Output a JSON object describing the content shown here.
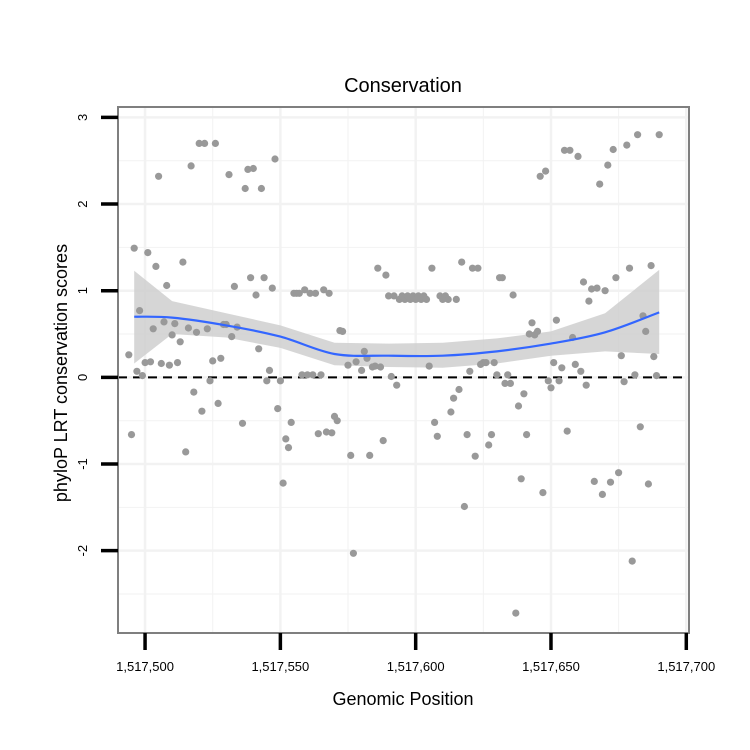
{
  "chart_data": {
    "type": "scatter",
    "title": "Conservation",
    "xlabel": "Genomic Position",
    "ylabel": "phyloP LRT conservation scores",
    "xlim": [
      1517490,
      1517701
    ],
    "ylim": [
      -2.95,
      3.12
    ],
    "x_ticks": [
      1517500,
      1517550,
      1517600,
      1517650,
      1517700
    ],
    "x_tick_labels": [
      "1,517,500",
      "1,517,550",
      "1,517,600",
      "1,517,650",
      "1,517,700"
    ],
    "y_ticks": [
      -2,
      -1,
      0,
      1,
      2,
      3
    ],
    "y_tick_labels": [
      "-2",
      "-1",
      "0",
      "1",
      "2",
      "3"
    ],
    "reference_line": 0,
    "grid": true,
    "colors": {
      "points": "#999999",
      "smooth_line": "#3366FF",
      "ribbon": "#CCCCCC",
      "panel_border": "#7F7F7F",
      "grid": "#F2F2F2",
      "axis_ticks": "#000000"
    },
    "points": [
      {
        "x": 1517494,
        "y": 0.26
      },
      {
        "x": 1517495,
        "y": -0.66
      },
      {
        "x": 1517496,
        "y": 1.49
      },
      {
        "x": 1517497,
        "y": 0.07
      },
      {
        "x": 1517498,
        "y": 0.77
      },
      {
        "x": 1517499,
        "y": 0.02
      },
      {
        "x": 1517500,
        "y": 0.17
      },
      {
        "x": 1517501,
        "y": 1.44
      },
      {
        "x": 1517502,
        "y": 0.18
      },
      {
        "x": 1517503,
        "y": 0.56
      },
      {
        "x": 1517504,
        "y": 1.28
      },
      {
        "x": 1517505,
        "y": 2.32
      },
      {
        "x": 1517506,
        "y": 0.16
      },
      {
        "x": 1517507,
        "y": 0.64
      },
      {
        "x": 1517508,
        "y": 1.06
      },
      {
        "x": 1517509,
        "y": 0.14
      },
      {
        "x": 1517510,
        "y": 0.49
      },
      {
        "x": 1517511,
        "y": 0.62
      },
      {
        "x": 1517512,
        "y": 0.17
      },
      {
        "x": 1517513,
        "y": 0.41
      },
      {
        "x": 1517514,
        "y": 1.33
      },
      {
        "x": 1517515,
        "y": -0.86
      },
      {
        "x": 1517516,
        "y": 0.57
      },
      {
        "x": 1517517,
        "y": 2.44
      },
      {
        "x": 1517518,
        "y": -0.17
      },
      {
        "x": 1517519,
        "y": 0.52
      },
      {
        "x": 1517520,
        "y": 2.7
      },
      {
        "x": 1517521,
        "y": -0.39
      },
      {
        "x": 1517522,
        "y": 2.7
      },
      {
        "x": 1517523,
        "y": 0.56
      },
      {
        "x": 1517524,
        "y": -0.04
      },
      {
        "x": 1517525,
        "y": 0.19
      },
      {
        "x": 1517526,
        "y": 2.7
      },
      {
        "x": 1517527,
        "y": -0.3
      },
      {
        "x": 1517528,
        "y": 0.22
      },
      {
        "x": 1517529,
        "y": 0.61
      },
      {
        "x": 1517530,
        "y": 0.61
      },
      {
        "x": 1517531,
        "y": 2.34
      },
      {
        "x": 1517532,
        "y": 0.47
      },
      {
        "x": 1517533,
        "y": 1.05
      },
      {
        "x": 1517534,
        "y": 0.58
      },
      {
        "x": 1517536,
        "y": -0.53
      },
      {
        "x": 1517537,
        "y": 2.18
      },
      {
        "x": 1517538,
        "y": 2.4
      },
      {
        "x": 1517539,
        "y": 1.15
      },
      {
        "x": 1517540,
        "y": 2.41
      },
      {
        "x": 1517541,
        "y": 0.95
      },
      {
        "x": 1517542,
        "y": 0.33
      },
      {
        "x": 1517543,
        "y": 2.18
      },
      {
        "x": 1517544,
        "y": 1.15
      },
      {
        "x": 1517545,
        "y": -0.04
      },
      {
        "x": 1517546,
        "y": 0.08
      },
      {
        "x": 1517547,
        "y": 1.03
      },
      {
        "x": 1517548,
        "y": 2.52
      },
      {
        "x": 1517549,
        "y": -0.36
      },
      {
        "x": 1517550,
        "y": -0.04
      },
      {
        "x": 1517551,
        "y": -1.22
      },
      {
        "x": 1517552,
        "y": -0.71
      },
      {
        "x": 1517553,
        "y": -0.81
      },
      {
        "x": 1517554,
        "y": -0.52
      },
      {
        "x": 1517555,
        "y": 0.97
      },
      {
        "x": 1517556,
        "y": 0.97
      },
      {
        "x": 1517557,
        "y": 0.97
      },
      {
        "x": 1517558,
        "y": 0.03
      },
      {
        "x": 1517559,
        "y": 1.01
      },
      {
        "x": 1517560,
        "y": 0.03
      },
      {
        "x": 1517561,
        "y": 0.97
      },
      {
        "x": 1517562,
        "y": 0.03
      },
      {
        "x": 1517563,
        "y": 0.97
      },
      {
        "x": 1517564,
        "y": -0.65
      },
      {
        "x": 1517565,
        "y": 0.03
      },
      {
        "x": 1517566,
        "y": 1.01
      },
      {
        "x": 1517567,
        "y": -0.63
      },
      {
        "x": 1517568,
        "y": 0.97
      },
      {
        "x": 1517569,
        "y": -0.64
      },
      {
        "x": 1517570,
        "y": -0.45
      },
      {
        "x": 1517571,
        "y": -0.5
      },
      {
        "x": 1517572,
        "y": 0.54
      },
      {
        "x": 1517573,
        "y": 0.53
      },
      {
        "x": 1517575,
        "y": 0.14
      },
      {
        "x": 1517576,
        "y": -0.9
      },
      {
        "x": 1517577,
        "y": -2.03
      },
      {
        "x": 1517578,
        "y": 0.18
      },
      {
        "x": 1517580,
        "y": 0.08
      },
      {
        "x": 1517581,
        "y": 0.3
      },
      {
        "x": 1517582,
        "y": 0.22
      },
      {
        "x": 1517583,
        "y": -0.9
      },
      {
        "x": 1517584,
        "y": 0.12
      },
      {
        "x": 1517585,
        "y": 0.13
      },
      {
        "x": 1517586,
        "y": 1.26
      },
      {
        "x": 1517587,
        "y": 0.12
      },
      {
        "x": 1517588,
        "y": -0.73
      },
      {
        "x": 1517589,
        "y": 1.18
      },
      {
        "x": 1517590,
        "y": 0.94
      },
      {
        "x": 1517591,
        "y": 0.01
      },
      {
        "x": 1517592,
        "y": 0.94
      },
      {
        "x": 1517593,
        "y": -0.09
      },
      {
        "x": 1517594,
        "y": 0.9
      },
      {
        "x": 1517595,
        "y": 0.94
      },
      {
        "x": 1517596,
        "y": 0.9
      },
      {
        "x": 1517597,
        "y": 0.94
      },
      {
        "x": 1517598,
        "y": 0.9
      },
      {
        "x": 1517599,
        "y": 0.94
      },
      {
        "x": 1517600,
        "y": 0.9
      },
      {
        "x": 1517601,
        "y": 0.94
      },
      {
        "x": 1517602,
        "y": 0.9
      },
      {
        "x": 1517603,
        "y": 0.94
      },
      {
        "x": 1517604,
        "y": 0.9
      },
      {
        "x": 1517605,
        "y": 0.13
      },
      {
        "x": 1517606,
        "y": 1.26
      },
      {
        "x": 1517607,
        "y": -0.52
      },
      {
        "x": 1517608,
        "y": -0.68
      },
      {
        "x": 1517609,
        "y": 0.94
      },
      {
        "x": 1517610,
        "y": 0.9
      },
      {
        "x": 1517611,
        "y": 0.94
      },
      {
        "x": 1517612,
        "y": 0.9
      },
      {
        "x": 1517613,
        "y": -0.4
      },
      {
        "x": 1517614,
        "y": -0.24
      },
      {
        "x": 1517615,
        "y": 0.9
      },
      {
        "x": 1517616,
        "y": -0.14
      },
      {
        "x": 1517617,
        "y": 1.33
      },
      {
        "x": 1517618,
        "y": -1.49
      },
      {
        "x": 1517619,
        "y": -0.66
      },
      {
        "x": 1517620,
        "y": 0.07
      },
      {
        "x": 1517621,
        "y": 1.26
      },
      {
        "x": 1517622,
        "y": -0.91
      },
      {
        "x": 1517623,
        "y": 1.26
      },
      {
        "x": 1517624,
        "y": 0.15
      },
      {
        "x": 1517625,
        "y": 0.17
      },
      {
        "x": 1517626,
        "y": 0.17
      },
      {
        "x": 1517627,
        "y": -0.78
      },
      {
        "x": 1517628,
        "y": -0.66
      },
      {
        "x": 1517629,
        "y": 0.17
      },
      {
        "x": 1517630,
        "y": 0.03
      },
      {
        "x": 1517631,
        "y": 1.15
      },
      {
        "x": 1517632,
        "y": 1.15
      },
      {
        "x": 1517633,
        "y": -0.07
      },
      {
        "x": 1517634,
        "y": 0.03
      },
      {
        "x": 1517635,
        "y": -0.07
      },
      {
        "x": 1517636,
        "y": 0.95
      },
      {
        "x": 1517637,
        "y": -2.72
      },
      {
        "x": 1517638,
        "y": -0.33
      },
      {
        "x": 1517639,
        "y": -1.17
      },
      {
        "x": 1517640,
        "y": -0.19
      },
      {
        "x": 1517641,
        "y": -0.66
      },
      {
        "x": 1517642,
        "y": 0.5
      },
      {
        "x": 1517643,
        "y": 0.63
      },
      {
        "x": 1517644,
        "y": 0.49
      },
      {
        "x": 1517645,
        "y": 0.53
      },
      {
        "x": 1517646,
        "y": 2.32
      },
      {
        "x": 1517647,
        "y": -1.33
      },
      {
        "x": 1517648,
        "y": 2.38
      },
      {
        "x": 1517649,
        "y": -0.04
      },
      {
        "x": 1517650,
        "y": -0.12
      },
      {
        "x": 1517651,
        "y": 0.17
      },
      {
        "x": 1517652,
        "y": 0.66
      },
      {
        "x": 1517653,
        "y": -0.04
      },
      {
        "x": 1517654,
        "y": 0.11
      },
      {
        "x": 1517655,
        "y": 2.62
      },
      {
        "x": 1517656,
        "y": -0.62
      },
      {
        "x": 1517657,
        "y": 2.62
      },
      {
        "x": 1517658,
        "y": 0.46
      },
      {
        "x": 1517659,
        "y": 0.15
      },
      {
        "x": 1517660,
        "y": 2.55
      },
      {
        "x": 1517661,
        "y": 0.07
      },
      {
        "x": 1517662,
        "y": 1.1
      },
      {
        "x": 1517663,
        "y": -0.09
      },
      {
        "x": 1517664,
        "y": 0.88
      },
      {
        "x": 1517665,
        "y": 1.02
      },
      {
        "x": 1517666,
        "y": -1.2
      },
      {
        "x": 1517667,
        "y": 1.03
      },
      {
        "x": 1517668,
        "y": 2.23
      },
      {
        "x": 1517669,
        "y": -1.35
      },
      {
        "x": 1517670,
        "y": 1.0
      },
      {
        "x": 1517671,
        "y": 2.45
      },
      {
        "x": 1517672,
        "y": -1.21
      },
      {
        "x": 1517673,
        "y": 2.63
      },
      {
        "x": 1517674,
        "y": 1.15
      },
      {
        "x": 1517675,
        "y": -1.1
      },
      {
        "x": 1517676,
        "y": 0.25
      },
      {
        "x": 1517677,
        "y": -0.05
      },
      {
        "x": 1517678,
        "y": 2.68
      },
      {
        "x": 1517679,
        "y": 1.26
      },
      {
        "x": 1517680,
        "y": -2.12
      },
      {
        "x": 1517681,
        "y": 0.03
      },
      {
        "x": 1517682,
        "y": 2.8
      },
      {
        "x": 1517683,
        "y": -0.57
      },
      {
        "x": 1517684,
        "y": 0.71
      },
      {
        "x": 1517685,
        "y": 0.53
      },
      {
        "x": 1517686,
        "y": -1.23
      },
      {
        "x": 1517687,
        "y": 1.29
      },
      {
        "x": 1517688,
        "y": 0.24
      },
      {
        "x": 1517689,
        "y": 0.02
      },
      {
        "x": 1517690,
        "y": 2.8
      }
    ],
    "smooth_curve": {
      "x": [
        1517496,
        1517510,
        1517530,
        1517550,
        1517570,
        1517590,
        1517610,
        1517630,
        1517650,
        1517670,
        1517690
      ],
      "y": [
        0.7,
        0.69,
        0.6,
        0.47,
        0.27,
        0.25,
        0.25,
        0.3,
        0.39,
        0.52,
        0.75
      ],
      "lower": [
        0.16,
        0.5,
        0.46,
        0.34,
        0.14,
        0.12,
        0.11,
        0.16,
        0.25,
        0.3,
        0.27
      ],
      "upper": [
        1.23,
        0.88,
        0.74,
        0.6,
        0.4,
        0.39,
        0.4,
        0.45,
        0.53,
        0.74,
        1.24
      ]
    }
  }
}
